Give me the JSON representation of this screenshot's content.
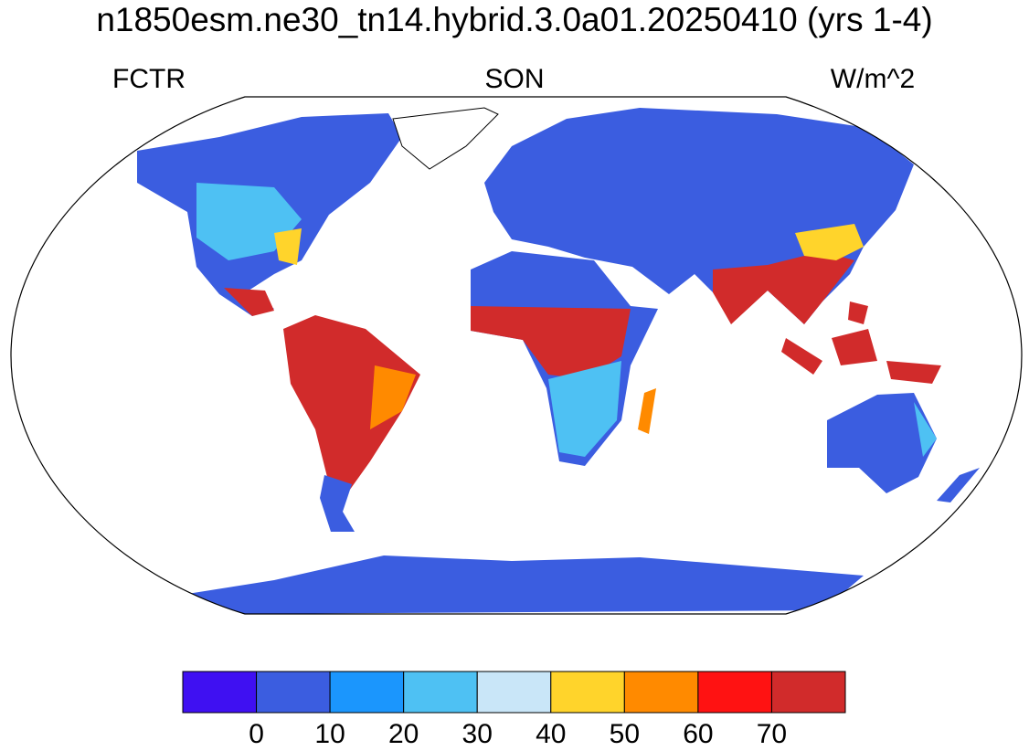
{
  "title": "n1850esm.ne30_tn14.hybrid.3.0a01.20250410 (yrs 1-4)",
  "left_label": "FCTR",
  "center_label": "SON",
  "right_label": "W/m^2",
  "colorbar": {
    "colors": [
      "#3f10f2",
      "#3b5de0",
      "#1b96fd",
      "#4ec1f3",
      "#c9e6f8",
      "#ffd42b",
      "#ff8a00",
      "#ff1212",
      "#d12b2b"
    ],
    "levels": [
      0,
      10,
      20,
      30,
      40,
      50,
      60,
      70
    ]
  }
}
